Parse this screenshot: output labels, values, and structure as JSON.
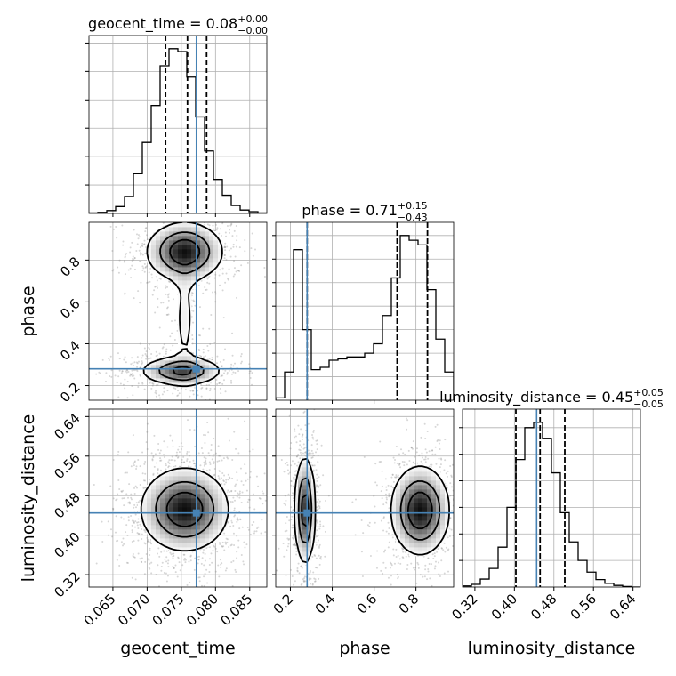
{
  "chart_data": {
    "type": "corner",
    "parameters": [
      "geocent_time",
      "phase",
      "luminosity_distance"
    ],
    "truths": {
      "geocent_time": 0.0772,
      "phase": 0.28,
      "luminosity_distance": 0.445
    },
    "ranges": {
      "geocent_time": [
        0.0615,
        0.0875
      ],
      "phase": [
        0.13,
        0.98
      ],
      "luminosity_distance": [
        0.295,
        0.655
      ]
    },
    "ticks": {
      "geocent_time": {
        "values": [
          0.065,
          0.07,
          0.075,
          0.08,
          0.085
        ],
        "labels": [
          "0.065",
          "0.070",
          "0.075",
          "0.080",
          "0.085"
        ]
      },
      "phase": {
        "values": [
          0.2,
          0.4,
          0.6,
          0.8
        ],
        "labels": [
          "0.2",
          "0.4",
          "0.6",
          "0.8"
        ]
      },
      "luminosity_distance": {
        "values": [
          0.32,
          0.4,
          0.48,
          0.56,
          0.64
        ],
        "labels": [
          "0.32",
          "0.40",
          "0.48",
          "0.56",
          "0.64"
        ]
      }
    },
    "marginals": [
      {
        "param": "geocent_time",
        "title": {
          "prefix": "geocent_time = 0.08",
          "sup": "+0.00",
          "sub": "−0.00"
        },
        "quantiles": [
          0.0727,
          0.0759,
          0.0787
        ],
        "bin_edges": [
          0.0615,
          0.0628,
          0.0641,
          0.0654,
          0.0667,
          0.068,
          0.0693,
          0.0706,
          0.0719,
          0.0732,
          0.0745,
          0.0758,
          0.0771,
          0.0784,
          0.0797,
          0.081,
          0.0823,
          0.0836,
          0.0849,
          0.0862,
          0.0875
        ],
        "counts": [
          1,
          2,
          5,
          12,
          30,
          70,
          125,
          190,
          260,
          290,
          285,
          240,
          170,
          110,
          60,
          32,
          14,
          6,
          3,
          1
        ]
      },
      {
        "param": "phase",
        "title": {
          "prefix": "phase = 0.71",
          "sup": "+0.15",
          "sub": "−0.43"
        },
        "quantiles": [
          0.28,
          0.71,
          0.855
        ],
        "bin_edges": [
          0.13,
          0.1725,
          0.215,
          0.2575,
          0.3,
          0.3425,
          0.385,
          0.4275,
          0.47,
          0.5125,
          0.555,
          0.5975,
          0.64,
          0.6825,
          0.725,
          0.7675,
          0.81,
          0.8525,
          0.895,
          0.9375,
          0.98
        ],
        "counts": [
          5,
          60,
          320,
          150,
          65,
          70,
          85,
          88,
          92,
          92,
          100,
          120,
          180,
          260,
          350,
          340,
          330,
          235,
          130,
          60
        ]
      },
      {
        "param": "luminosity_distance",
        "title": {
          "prefix": "luminosity_distance = 0.45",
          "sup": "+0.05",
          "sub": "−0.05"
        },
        "quantiles": [
          0.403,
          0.452,
          0.502
        ],
        "bin_edges": [
          0.295,
          0.313,
          0.331,
          0.349,
          0.367,
          0.385,
          0.403,
          0.421,
          0.439,
          0.457,
          0.475,
          0.493,
          0.511,
          0.529,
          0.547,
          0.565,
          0.583,
          0.601,
          0.619,
          0.637,
          0.655
        ],
        "counts": [
          2,
          5,
          15,
          35,
          75,
          150,
          240,
          300,
          310,
          280,
          215,
          140,
          85,
          50,
          28,
          14,
          7,
          3,
          1,
          0
        ]
      }
    ],
    "joint": [
      {
        "x": "geocent_time",
        "y": "phase",
        "modes": [
          {
            "mx": 0.0755,
            "my": 0.84,
            "sx": 0.0028,
            "sy": 0.07,
            "w": 1.0
          },
          {
            "mx": 0.075,
            "my": 0.27,
            "sx": 0.003,
            "sy": 0.035,
            "w": 0.8
          },
          {
            "mx": 0.0755,
            "my": 0.52,
            "sx": 0.0012,
            "sy": 0.2,
            "w": 0.18
          }
        ]
      },
      {
        "x": "geocent_time",
        "y": "luminosity_distance",
        "modes": [
          {
            "mx": 0.0755,
            "my": 0.452,
            "sx": 0.0032,
            "sy": 0.042,
            "w": 1.0
          }
        ]
      },
      {
        "x": "phase",
        "y": "luminosity_distance",
        "modes": [
          {
            "mx": 0.27,
            "my": 0.45,
            "sx": 0.025,
            "sy": 0.055,
            "w": 0.9
          },
          {
            "mx": 0.82,
            "my": 0.45,
            "sx": 0.07,
            "sy": 0.045,
            "w": 1.0
          }
        ]
      }
    ]
  }
}
